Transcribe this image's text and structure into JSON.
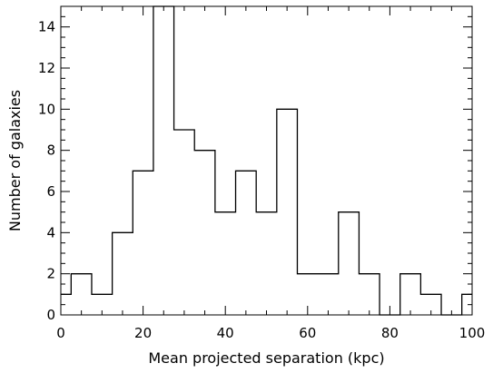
{
  "chart_data": {
    "type": "bar",
    "histogram": true,
    "title": "",
    "xlabel": "Mean projected separation (kpc)",
    "ylabel": "Number of galaxies",
    "xlim": [
      0,
      100
    ],
    "ylim": [
      0,
      15
    ],
    "bin_edges": [
      0,
      2.5,
      7.5,
      12.5,
      17.5,
      22.5,
      27.5,
      32.5,
      37.5,
      42.5,
      47.5,
      52.5,
      57.5,
      62.5,
      67.5,
      72.5,
      77.5,
      82.5,
      87.5,
      92.5,
      97.5,
      100
    ],
    "values": [
      1,
      2,
      1,
      4,
      7,
      15,
      9,
      8,
      5,
      7,
      5,
      10,
      2,
      2,
      5,
      2,
      0,
      2,
      1,
      0,
      1
    ],
    "x_ticks": [
      0,
      20,
      40,
      60,
      80,
      100
    ],
    "x_tick_labels": [
      "0",
      "20",
      "40",
      "60",
      "80",
      "100"
    ],
    "y_ticks": [
      0,
      2,
      4,
      6,
      8,
      10,
      12,
      14
    ],
    "y_tick_labels": [
      "0",
      "2",
      "4",
      "6",
      "8",
      "10",
      "12",
      "14"
    ],
    "x_minor_step": 5,
    "y_minor_step": 0.5,
    "grid": false,
    "legend": "none",
    "line_color": "#000000"
  }
}
